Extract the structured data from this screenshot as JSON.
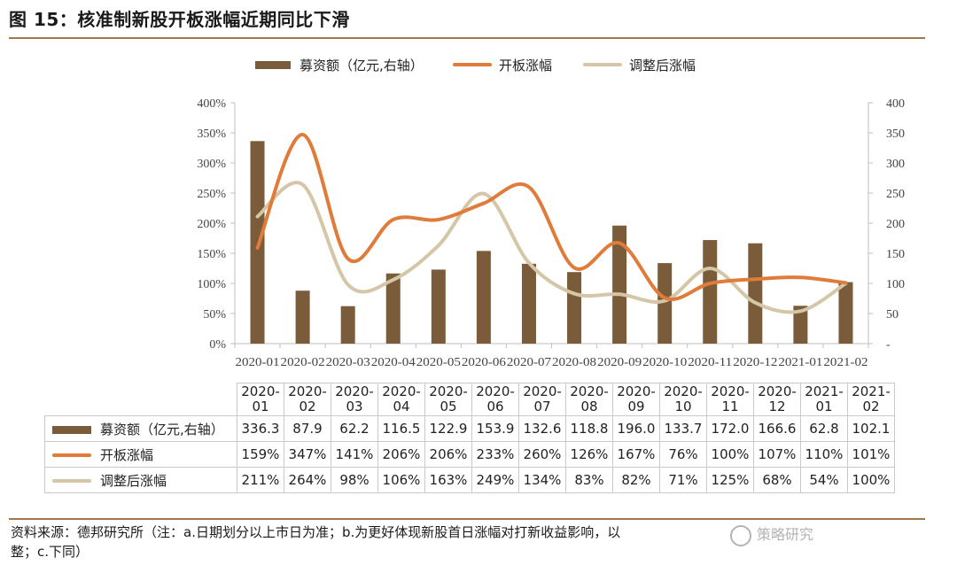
{
  "header": {
    "title": "图 15：核准制新股开板涨幅近期同比下滑"
  },
  "chart_data": {
    "type": "bar+line",
    "categories": [
      "2020-01",
      "2020-02",
      "2020-03",
      "2020-04",
      "2020-05",
      "2020-06",
      "2020-07",
      "2020-08",
      "2020-09",
      "2020-10",
      "2020-11",
      "2020-12",
      "2021-01",
      "2021-02"
    ],
    "series": [
      {
        "name": "募资额（亿元,右轴）",
        "type": "bar",
        "axis": "right",
        "color": "#7a5c3a",
        "values": [
          336.3,
          87.9,
          62.2,
          116.5,
          122.9,
          153.9,
          132.6,
          118.8,
          196.0,
          133.7,
          172.0,
          166.6,
          62.8,
          102.1
        ],
        "labels": [
          "336.3",
          "87.9",
          "62.2",
          "116.5",
          "122.9",
          "153.9",
          "132.6",
          "118.8",
          "196.0",
          "133.7",
          "172.0",
          "166.6",
          "62.8",
          "102.1"
        ]
      },
      {
        "name": "开板涨幅",
        "type": "line",
        "axis": "left",
        "color": "#e07b3a",
        "values": [
          159,
          347,
          141,
          206,
          206,
          233,
          260,
          126,
          167,
          76,
          100,
          107,
          110,
          101
        ],
        "labels": [
          "159%",
          "347%",
          "141%",
          "206%",
          "206%",
          "233%",
          "260%",
          "126%",
          "167%",
          "76%",
          "100%",
          "107%",
          "110%",
          "101%"
        ]
      },
      {
        "name": "调整后涨幅",
        "type": "line",
        "axis": "left",
        "color": "#d4c6a6",
        "values": [
          211,
          264,
          98,
          106,
          163,
          249,
          134,
          83,
          82,
          71,
          125,
          68,
          54,
          100
        ],
        "labels": [
          "211%",
          "264%",
          "98%",
          "106%",
          "163%",
          "249%",
          "134%",
          "83%",
          "82%",
          "71%",
          "125%",
          "68%",
          "54%",
          "100%"
        ]
      }
    ],
    "left_axis": {
      "ylim": [
        0,
        400
      ],
      "ticks": [
        "0%",
        "50%",
        "100%",
        "150%",
        "200%",
        "250%",
        "300%",
        "350%",
        "400%"
      ]
    },
    "right_axis": {
      "ylim": [
        0,
        400
      ],
      "ticks": [
        "-",
        "50",
        "100",
        "150",
        "200",
        "250",
        "300",
        "350",
        "400"
      ]
    },
    "legend_position": "top",
    "table": {
      "header_rows": [
        [
          "2020-",
          "01"
        ],
        [
          "2020-",
          "02"
        ],
        [
          "2020-",
          "03"
        ],
        [
          "2020-",
          "04"
        ],
        [
          "2020-",
          "05"
        ],
        [
          "2020-",
          "06"
        ],
        [
          "2020-",
          "07"
        ],
        [
          "2020-",
          "08"
        ],
        [
          "2020-",
          "09"
        ],
        [
          "2020-",
          "10"
        ],
        [
          "2020-",
          "11"
        ],
        [
          "2020-",
          "12"
        ],
        [
          "2021-",
          "01"
        ],
        [
          "2021-",
          "02"
        ]
      ]
    }
  },
  "footer": {
    "note_line1": "资料来源：德邦研究所（注：a.日期划分以上市日为准；b.为更好体现新股首日涨幅对打新收益影响，以",
    "note_line2": "整；c.下同）",
    "watermark": "策略研究"
  }
}
